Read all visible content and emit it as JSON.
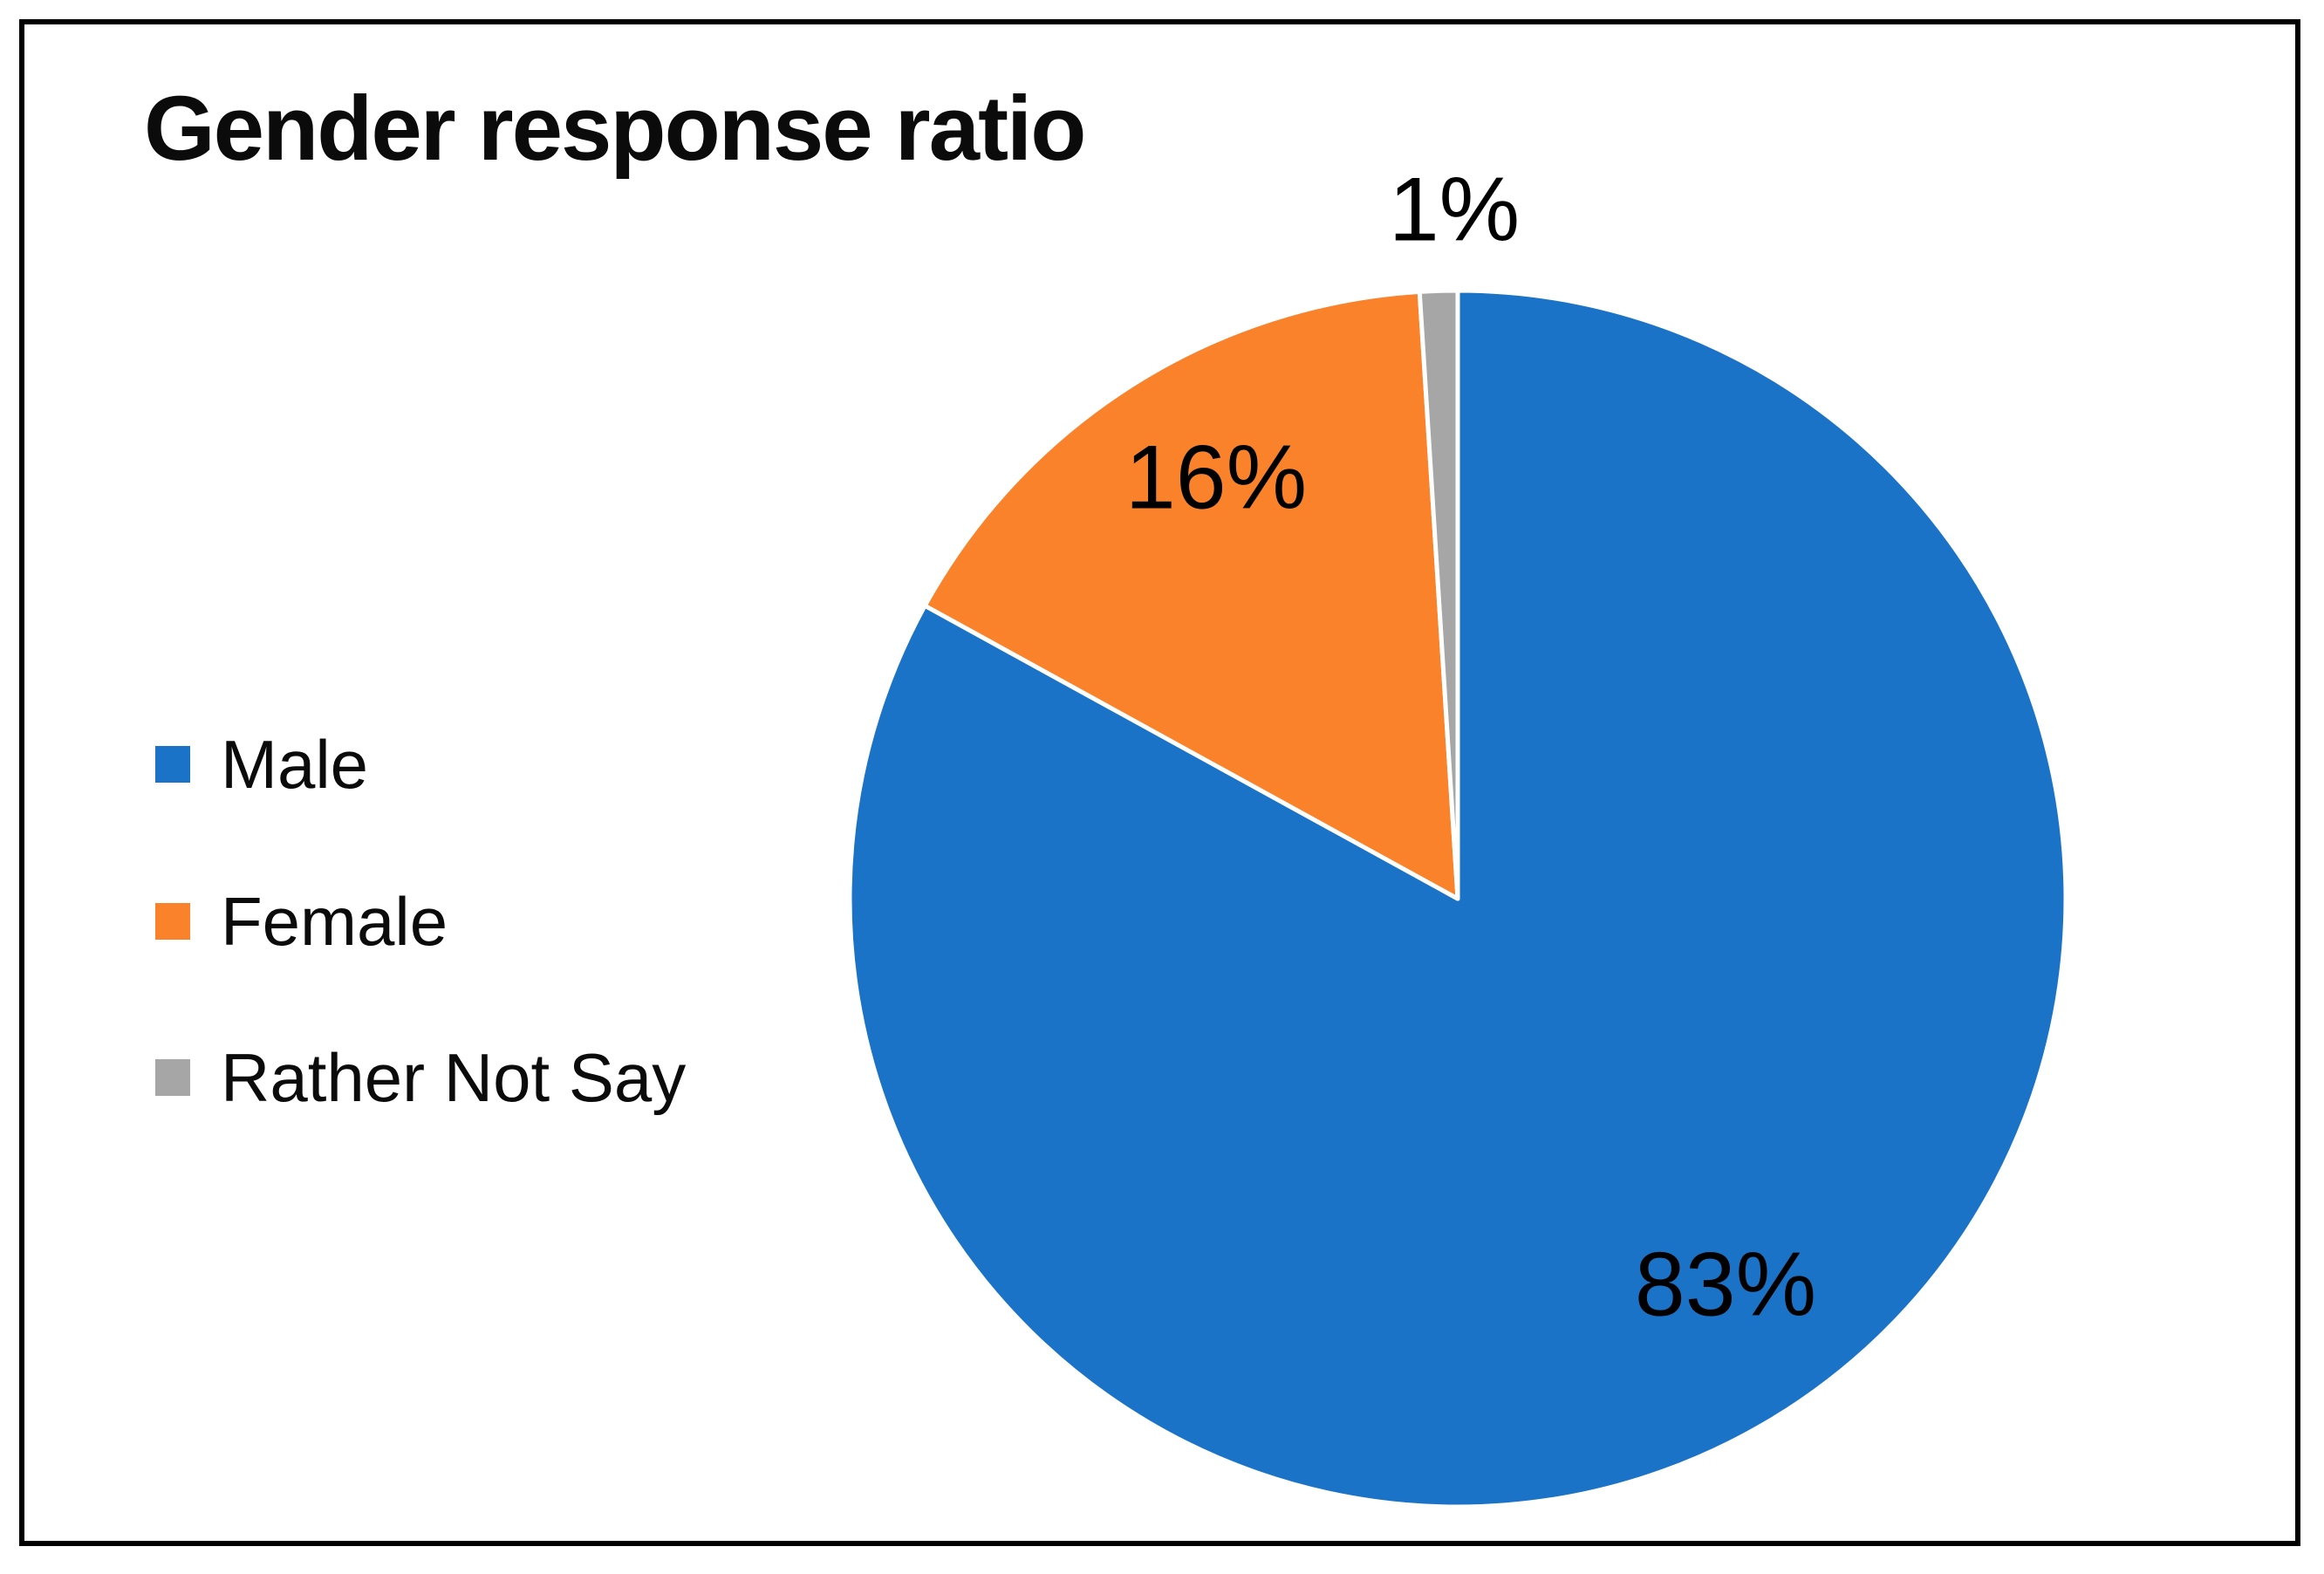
{
  "title": "Gender response ratio",
  "legend": {
    "position": "left",
    "items": [
      {
        "label": "Male",
        "color": "#1B73C7"
      },
      {
        "label": "Female",
        "color": "#F9822B"
      },
      {
        "label": "Rather Not Say",
        "color": "#A6A6A6"
      }
    ]
  },
  "chart_data": {
    "type": "pie",
    "title": "Gender response ratio",
    "categories": [
      "Male",
      "Female",
      "Rather Not Say"
    ],
    "values": [
      83,
      16,
      1
    ],
    "unit": "percent",
    "data_labels": [
      "83%",
      "16%",
      "1%"
    ],
    "colors": [
      "#1B73C7",
      "#F9822B",
      "#A6A6A6"
    ],
    "legend_position": "left",
    "start_angle_deg": 0,
    "direction": "clockwise",
    "slice_border_color": "#FFFFFF",
    "grid": false
  },
  "frame": {
    "border_color": "#010101",
    "background": "#FFFFFF"
  }
}
